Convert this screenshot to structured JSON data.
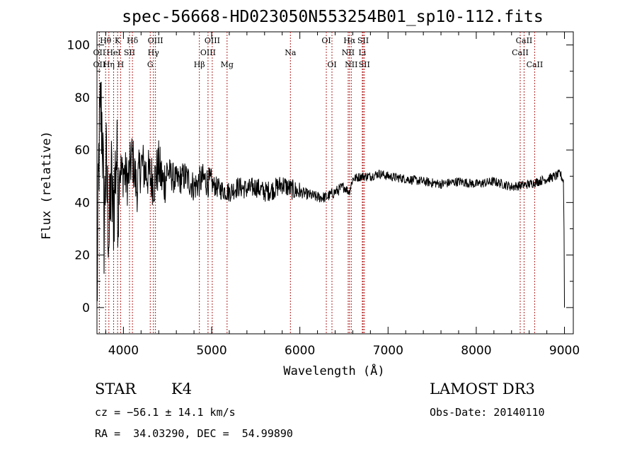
{
  "chart_data": {
    "type": "line",
    "title": "spec-56668-HD023050N553254B01_sp10-112.fits",
    "xlabel": "Wavelength (Å)",
    "ylabel": "Flux (relative)",
    "xlim": [
      3700,
      9100
    ],
    "ylim": [
      -10,
      105
    ],
    "xticks": [
      "4000",
      "5000",
      "6000",
      "7000",
      "8000",
      "9000"
    ],
    "yticks": [
      "0",
      "20",
      "40",
      "60",
      "80",
      "100"
    ],
    "series": [
      {
        "name": "flux",
        "x": [
          3700,
          3720,
          3740,
          3760,
          3780,
          3800,
          3820,
          3840,
          3860,
          3880,
          3900,
          3920,
          3940,
          3960,
          3980,
          4000,
          4050,
          4100,
          4150,
          4200,
          4250,
          4300,
          4350,
          4400,
          4450,
          4500,
          4600,
          4700,
          4800,
          4900,
          5000,
          5100,
          5200,
          5300,
          5400,
          5500,
          5600,
          5700,
          5800,
          5900,
          6000,
          6100,
          6200,
          6300,
          6400,
          6500,
          6560,
          6600,
          6700,
          6800,
          6900,
          7000,
          7200,
          7400,
          7600,
          7800,
          8000,
          8200,
          8400,
          8600,
          8800,
          8900,
          8950,
          8990,
          9000
        ],
        "y": [
          0,
          55,
          75,
          70,
          30,
          55,
          40,
          25,
          50,
          35,
          45,
          60,
          40,
          55,
          50,
          52,
          48,
          58,
          45,
          55,
          52,
          50,
          48,
          54,
          47,
          52,
          48,
          50,
          46,
          49,
          47,
          45,
          44,
          46,
          45,
          46,
          44,
          45,
          47,
          45,
          44,
          43,
          42,
          42,
          44,
          46,
          44,
          49,
          50,
          50,
          51,
          50,
          49,
          48,
          47,
          48,
          47,
          48,
          46,
          47,
          49,
          50,
          51,
          48,
          2
        ]
      }
    ],
    "lines": [
      {
        "name": "OII",
        "wavelength": 3727,
        "row": 3
      },
      {
        "name": "Hθ",
        "wavelength": 3798,
        "row": 1
      },
      {
        "name": "OII",
        "wavelength": 3727,
        "row": 2
      },
      {
        "name": "HeI",
        "wavelength": 3889,
        "row": 2
      },
      {
        "name": "Hη",
        "wavelength": 3835,
        "row": 3
      },
      {
        "name": "K",
        "wavelength": 3934,
        "row": 1
      },
      {
        "name": "H",
        "wavelength": 3968,
        "row": 3
      },
      {
        "name": "SII",
        "wavelength": 4069,
        "row": 2
      },
      {
        "name": "Hδ",
        "wavelength": 4102,
        "row": 1
      },
      {
        "name": "OIII",
        "wavelength": 4363,
        "row": 1
      },
      {
        "name": "Hγ",
        "wavelength": 4340,
        "row": 2
      },
      {
        "name": "G",
        "wavelength": 4304,
        "row": 3
      },
      {
        "name": "Hβ",
        "wavelength": 4861,
        "row": 3
      },
      {
        "name": "OIII",
        "wavelength": 5007,
        "row": 1
      },
      {
        "name": "OIII",
        "wavelength": 4959,
        "row": 2
      },
      {
        "name": "Mg",
        "wavelength": 5175,
        "row": 3
      },
      {
        "name": "Na",
        "wavelength": 5893,
        "row": 2
      },
      {
        "name": "OI",
        "wavelength": 6300,
        "row": 1
      },
      {
        "name": "OI",
        "wavelength": 6364,
        "row": 3
      },
      {
        "name": "Hα",
        "wavelength": 6563,
        "row": 1
      },
      {
        "name": "NII",
        "wavelength": 6548,
        "row": 2
      },
      {
        "name": "NII",
        "wavelength": 6583,
        "row": 3
      },
      {
        "name": "SII",
        "wavelength": 6717,
        "row": 1
      },
      {
        "name": "Li",
        "wavelength": 6708,
        "row": 2
      },
      {
        "name": "SII",
        "wavelength": 6731,
        "row": 3
      },
      {
        "name": "CaII",
        "wavelength": 8542,
        "row": 1
      },
      {
        "name": "CaII",
        "wavelength": 8498,
        "row": 2
      },
      {
        "name": "CaII",
        "wavelength": 8662,
        "row": 3
      }
    ]
  },
  "info": {
    "class": "STAR",
    "subclass": "K4",
    "survey": "LAMOST DR3",
    "cz": "cz = −56.1 ± 14.1 km/s",
    "obs_date": "Obs-Date: 20140110",
    "radec": "RA =  34.03290, DEC =  54.99890"
  }
}
